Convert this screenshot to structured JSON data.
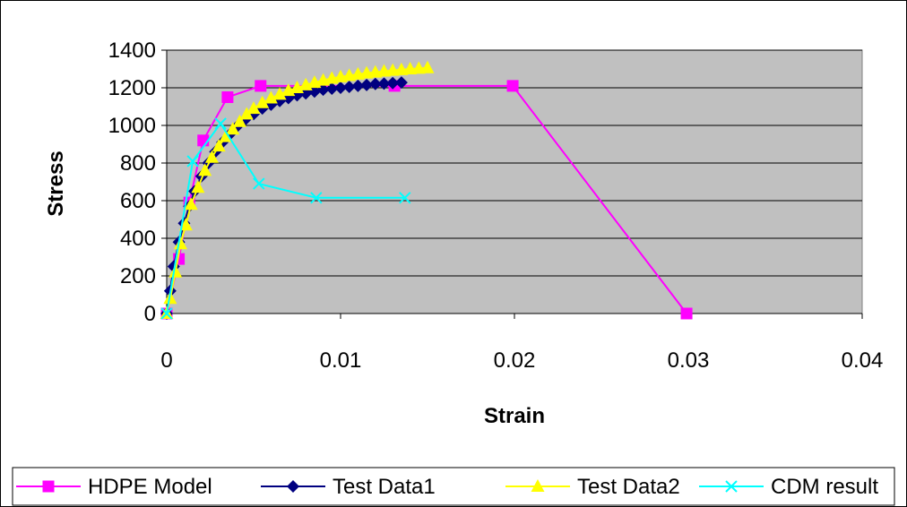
{
  "chart_data": {
    "type": "scatter",
    "title": "",
    "xlabel": "Strain",
    "ylabel": "Stress",
    "xlim": [
      0,
      0.04
    ],
    "ylim": [
      0,
      1400
    ],
    "xticks": [
      0,
      0.01,
      0.02,
      0.03,
      0.04
    ],
    "xtick_labels": [
      "0",
      "0.01",
      "0.02",
      "0.03",
      "0.04"
    ],
    "yticks": [
      0,
      200,
      400,
      600,
      800,
      1000,
      1200,
      1400
    ],
    "ytick_labels": [
      "0",
      "200",
      "400",
      "600",
      "800",
      "1000",
      "1200",
      "1400"
    ],
    "grid": "horizontal",
    "plot_background": "#c0c0c0",
    "legend_position": "bottom",
    "series": [
      {
        "name": "HDPE Model",
        "color": "#ff00ff",
        "marker": "square",
        "x": [
          0,
          0.0007,
          0.0013,
          0.0021,
          0.0035,
          0.0054,
          0.0131,
          0.0199,
          0.0299
        ],
        "y": [
          0,
          290,
          590,
          920,
          1150,
          1210,
          1210,
          1210,
          0
        ]
      },
      {
        "name": "Test Data1",
        "color": "#000080",
        "marker": "diamond",
        "x": [
          0,
          0.0002,
          0.0004,
          0.0007,
          0.001,
          0.0013,
          0.0016,
          0.002,
          0.0024,
          0.0028,
          0.0032,
          0.0036,
          0.004,
          0.0045,
          0.005,
          0.0055,
          0.006,
          0.0065,
          0.007,
          0.0075,
          0.008,
          0.0085,
          0.009,
          0.0095,
          0.01,
          0.0105,
          0.011,
          0.0115,
          0.012,
          0.0125,
          0.013,
          0.0135
        ],
        "y": [
          0,
          120,
          250,
          380,
          480,
          570,
          650,
          730,
          800,
          860,
          910,
          950,
          990,
          1030,
          1060,
          1090,
          1110,
          1130,
          1145,
          1160,
          1170,
          1180,
          1190,
          1195,
          1200,
          1205,
          1210,
          1215,
          1220,
          1222,
          1225,
          1228
        ]
      },
      {
        "name": "Test Data2",
        "color": "#ffff00",
        "marker": "triangle",
        "x": [
          0,
          0.0002,
          0.0005,
          0.0008,
          0.0011,
          0.0014,
          0.0018,
          0.0022,
          0.0026,
          0.003,
          0.0034,
          0.0038,
          0.0042,
          0.0046,
          0.005,
          0.0055,
          0.006,
          0.0065,
          0.007,
          0.0075,
          0.008,
          0.0085,
          0.009,
          0.0095,
          0.01,
          0.0105,
          0.011,
          0.0115,
          0.012,
          0.0125,
          0.013,
          0.0135,
          0.014,
          0.0145,
          0.015
        ],
        "y": [
          0,
          80,
          220,
          370,
          470,
          580,
          670,
          760,
          830,
          890,
          940,
          980,
          1020,
          1060,
          1090,
          1120,
          1145,
          1165,
          1185,
          1200,
          1215,
          1228,
          1240,
          1250,
          1258,
          1265,
          1272,
          1278,
          1283,
          1288,
          1292,
          1296,
          1300,
          1303,
          1306
        ]
      },
      {
        "name": "CDM result",
        "color": "#00ffff",
        "marker": "x",
        "x": [
          0,
          0.0015,
          0.0031,
          0.0053,
          0.0086,
          0.0137
        ],
        "y": [
          0,
          810,
          1010,
          690,
          615,
          615
        ]
      }
    ]
  }
}
